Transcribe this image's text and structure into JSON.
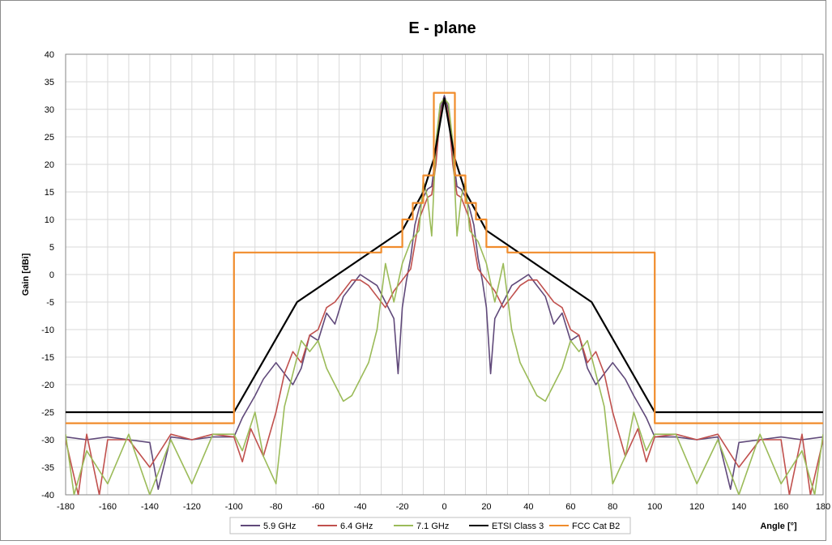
{
  "chart_data": {
    "type": "line",
    "title": "E - plane",
    "xlabel": "Angle [°]",
    "ylabel": "Gain [dBi]",
    "xlim": [
      -180,
      180
    ],
    "ylim": [
      -40,
      40
    ],
    "xticks": [
      -180,
      -160,
      -140,
      -120,
      -100,
      -80,
      -60,
      -40,
      -20,
      0,
      20,
      40,
      60,
      80,
      100,
      120,
      140,
      160,
      180
    ],
    "yticks": [
      -40,
      -35,
      -30,
      -25,
      -20,
      -15,
      -10,
      -5,
      0,
      5,
      10,
      15,
      20,
      25,
      30,
      35,
      40
    ],
    "grid": true,
    "legend_position": "bottom",
    "series": [
      {
        "name": "5.9 GHz",
        "color": "#60497a",
        "x": [
          -180,
          -170,
          -160,
          -150,
          -140,
          -136,
          -130,
          -120,
          -110,
          -100,
          -96,
          -90,
          -86,
          -80,
          -76,
          -72,
          -68,
          -64,
          -60,
          -56,
          -52,
          -48,
          -44,
          -40,
          -36,
          -32,
          -28,
          -24,
          -22,
          -20,
          -18,
          -16,
          -14,
          -12,
          -10,
          -8,
          -6,
          -4,
          -2,
          0,
          2,
          4,
          6,
          8,
          10,
          12,
          14,
          16,
          18,
          20,
          22,
          24,
          28,
          32,
          36,
          40,
          44,
          48,
          52,
          56,
          60,
          64,
          68,
          72,
          76,
          80,
          86,
          90,
          96,
          100,
          110,
          120,
          130,
          136,
          140,
          150,
          160,
          170,
          180
        ],
        "y": [
          -29.5,
          -30,
          -29.5,
          -30,
          -30.5,
          -39,
          -29.5,
          -30,
          -29.5,
          -29.5,
          -26,
          -22,
          -19,
          -16,
          -18,
          -20,
          -17,
          -11,
          -12,
          -7,
          -9,
          -4,
          -2,
          0,
          -1,
          -2,
          -5,
          -8,
          -18,
          -6,
          -1,
          3,
          9,
          12,
          14,
          15.5,
          16,
          22,
          30,
          32.5,
          30,
          22,
          16,
          15.5,
          14,
          12,
          9,
          3,
          -1,
          -6,
          -18,
          -8,
          -5,
          -2,
          -1,
          0,
          -2,
          -4,
          -9,
          -7,
          -12,
          -11,
          -17,
          -20,
          -18,
          -16,
          -19,
          -22,
          -26,
          -29.5,
          -29.5,
          -30,
          -29.5,
          -39,
          -30.5,
          -30,
          -29.5,
          -30,
          -29.5
        ]
      },
      {
        "name": "6.4 GHz",
        "color": "#c0504d",
        "x": [
          -180,
          -174,
          -170,
          -164,
          -160,
          -150,
          -140,
          -130,
          -120,
          -110,
          -100,
          -96,
          -92,
          -86,
          -80,
          -76,
          -72,
          -68,
          -64,
          -60,
          -56,
          -52,
          -48,
          -44,
          -40,
          -36,
          -32,
          -28,
          -24,
          -20,
          -16,
          -12,
          -10,
          -8,
          -6,
          -4,
          -2,
          0,
          2,
          4,
          6,
          8,
          10,
          12,
          16,
          20,
          24,
          28,
          32,
          36,
          40,
          44,
          48,
          52,
          56,
          60,
          64,
          68,
          72,
          76,
          80,
          86,
          92,
          96,
          100,
          110,
          120,
          130,
          140,
          150,
          160,
          164,
          170,
          174,
          180
        ],
        "y": [
          -30,
          -40,
          -29,
          -40,
          -30,
          -30,
          -35,
          -29,
          -30,
          -29,
          -29.5,
          -34,
          -28,
          -33,
          -25,
          -18,
          -14,
          -16,
          -11,
          -10,
          -6,
          -5,
          -3,
          -1,
          -1,
          -2,
          -4,
          -6,
          -3,
          -1,
          1,
          10,
          12,
          14,
          14.5,
          20,
          29,
          32,
          29,
          20,
          14.5,
          14,
          12,
          10,
          1,
          -1,
          -3,
          -6,
          -4,
          -2,
          -1,
          -1,
          -3,
          -5,
          -6,
          -10,
          -11,
          -16,
          -14,
          -18,
          -25,
          -33,
          -28,
          -34,
          -29.5,
          -29,
          -30,
          -29,
          -35,
          -30,
          -30,
          -40,
          -29,
          -40,
          -30
        ]
      },
      {
        "name": "7.1 GHz",
        "color": "#9bbb59",
        "x": [
          -180,
          -176,
          -170,
          -160,
          -150,
          -140,
          -130,
          -120,
          -110,
          -100,
          -96,
          -90,
          -86,
          -80,
          -76,
          -72,
          -68,
          -64,
          -60,
          -56,
          -52,
          -48,
          -44,
          -40,
          -36,
          -32,
          -28,
          -24,
          -20,
          -16,
          -12,
          -10,
          -8,
          -6,
          -4,
          -2,
          0,
          2,
          4,
          6,
          8,
          10,
          12,
          16,
          20,
          24,
          28,
          32,
          36,
          40,
          44,
          48,
          52,
          56,
          60,
          64,
          68,
          72,
          76,
          80,
          86,
          90,
          96,
          100,
          110,
          120,
          130,
          140,
          150,
          160,
          170,
          176,
          180
        ],
        "y": [
          -29,
          -40,
          -32,
          -38,
          -29,
          -40,
          -30,
          -38,
          -29,
          -29,
          -32,
          -25,
          -33,
          -38,
          -24,
          -18,
          -12,
          -14,
          -12,
          -17,
          -20,
          -23,
          -22,
          -19,
          -16,
          -10,
          2,
          -5,
          2,
          6,
          8,
          17,
          14,
          7,
          24,
          31,
          32,
          31,
          24,
          7,
          14,
          17,
          8,
          6,
          2,
          -5,
          2,
          -10,
          -16,
          -19,
          -22,
          -23,
          -20,
          -17,
          -12,
          -14,
          -12,
          -18,
          -24,
          -38,
          -33,
          -25,
          -32,
          -29,
          -29,
          -38,
          -30,
          -40,
          -29,
          -38,
          -32,
          -40,
          -29
        ]
      },
      {
        "name": "ETSI Class 3",
        "color": "#000000",
        "x": [
          -180,
          -100,
          -70,
          -20,
          -10,
          -5,
          0,
          5,
          10,
          20,
          70,
          100,
          180
        ],
        "y": [
          -25,
          -25,
          -5,
          8,
          15,
          21,
          32,
          21,
          15,
          8,
          -5,
          -25,
          -25
        ]
      },
      {
        "name": "FCC Cat B2",
        "color": "#f08c2c",
        "x": [
          -180,
          -100,
          -100,
          -30,
          -30,
          -20,
          -20,
          -15,
          -15,
          -10,
          -10,
          -5,
          -5,
          5,
          5,
          10,
          10,
          15,
          15,
          20,
          20,
          30,
          30,
          100,
          100,
          180
        ],
        "y": [
          -27,
          -27,
          4,
          4,
          5,
          5,
          10,
          10,
          13,
          13,
          18,
          18,
          33,
          33,
          18,
          18,
          13,
          13,
          10,
          10,
          5,
          5,
          4,
          4,
          -27,
          -27
        ]
      }
    ]
  }
}
